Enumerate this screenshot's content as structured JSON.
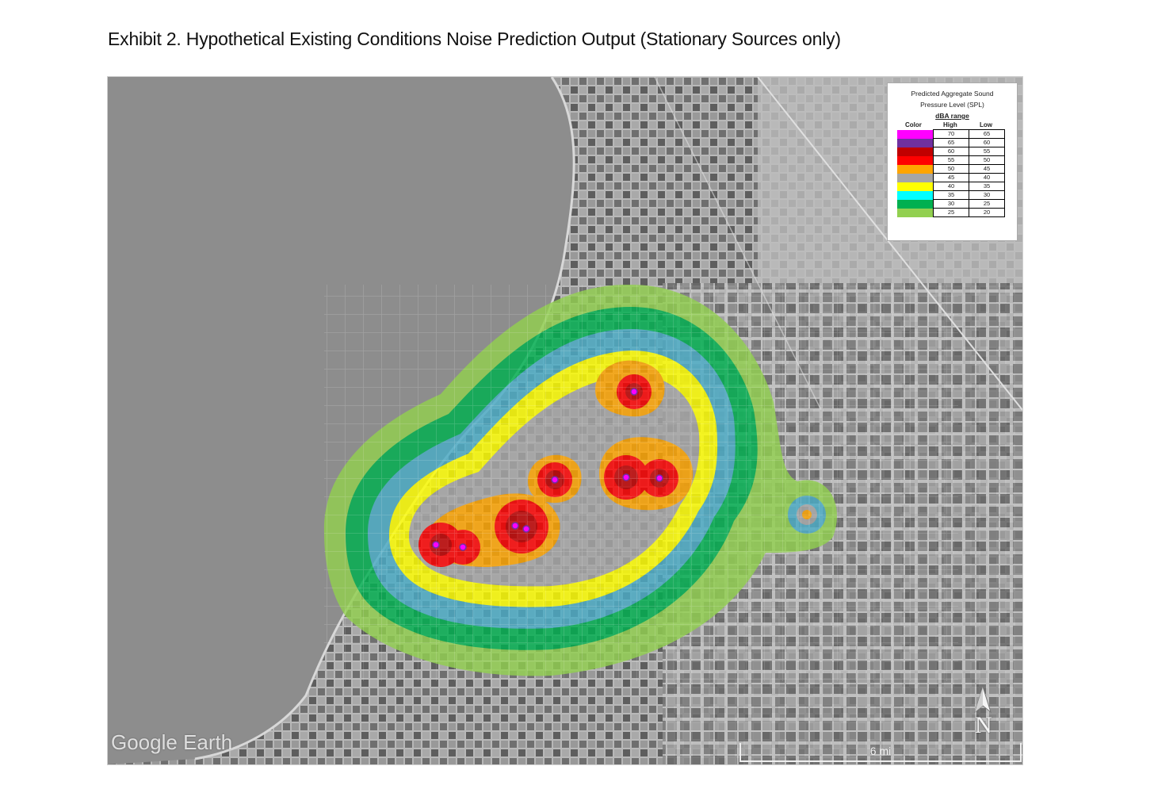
{
  "title": "Exhibit 2. Hypothetical Existing Conditions Noise Prediction Output (Stationary Sources only)",
  "legend": {
    "title_line1": "Predicted Aggregate Sound",
    "title_line2": "Pressure Level (SPL)",
    "subtitle": "dBA range",
    "col_color": "Color",
    "col_high": "High",
    "col_low": "Low",
    "rows": [
      {
        "color": "#ff00ff",
        "high": "70",
        "low": "65"
      },
      {
        "color": "#7030a0",
        "high": "65",
        "low": "60"
      },
      {
        "color": "#c00000",
        "high": "60",
        "low": "55"
      },
      {
        "color": "#ff0000",
        "high": "55",
        "low": "50"
      },
      {
        "color": "#ffa500",
        "high": "50",
        "low": "45"
      },
      {
        "color": "#a6a6a6",
        "high": "45",
        "low": "40"
      },
      {
        "color": "#ffff00",
        "high": "40",
        "low": "35"
      },
      {
        "color": "#00ffff",
        "high": "35",
        "low": "30"
      },
      {
        "color": "#00b050",
        "high": "30",
        "low": "25"
      },
      {
        "color": "#92d050",
        "high": "25",
        "low": "20"
      }
    ]
  },
  "map": {
    "attribution": "Google Earth",
    "scale_label": "6 mi",
    "north_label": "N",
    "icons": [
      "north-arrow-icon"
    ]
  }
}
